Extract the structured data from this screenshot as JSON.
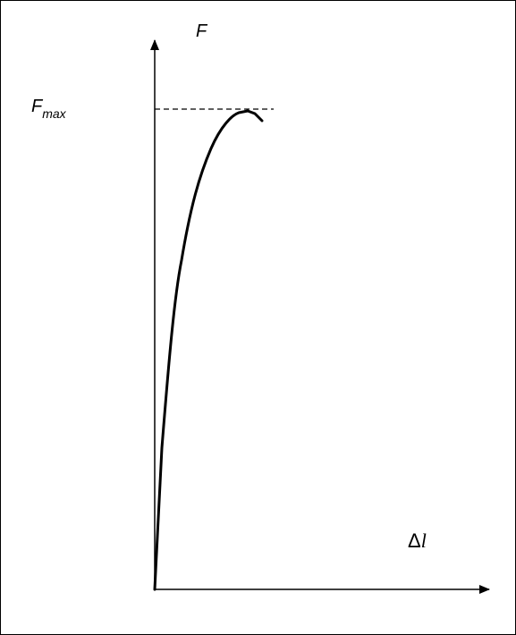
{
  "diagram": {
    "type": "force-elongation curve",
    "y_axis": {
      "label": "F"
    },
    "x_axis": {
      "label_symbol": "Δ",
      "label_var": "l"
    },
    "max_marker": {
      "base": "F",
      "subscript": "max",
      "line_style": "dashed"
    },
    "colors": {
      "stroke": "#000000",
      "background": "#ffffff"
    }
  }
}
